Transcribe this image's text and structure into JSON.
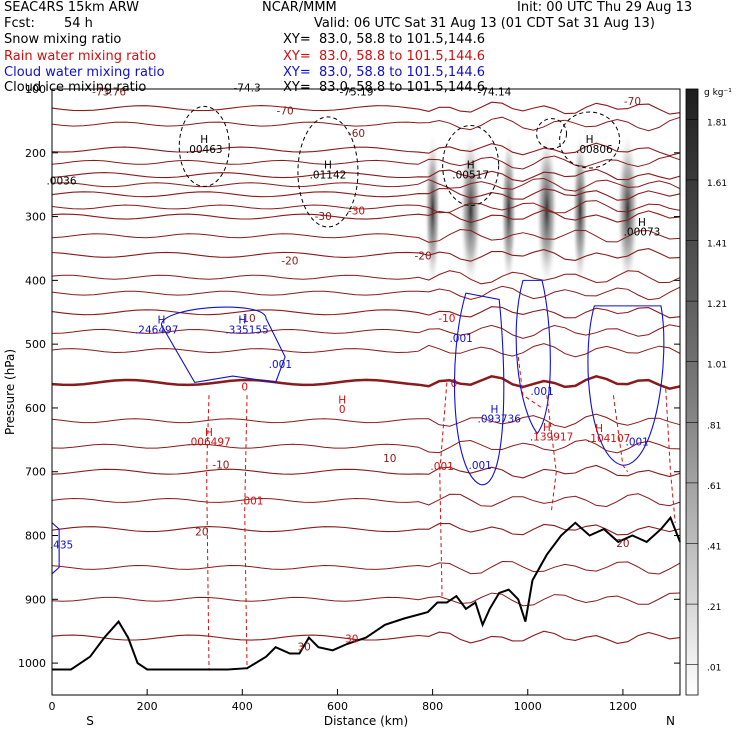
{
  "header": {
    "model": "SEAC4RS 15km ARW",
    "org": "NCAR/MMM",
    "init": "Init: 00 UTC Thu 29 Aug 13",
    "fcst_label": "Fcst:",
    "fcst_value": "54 h",
    "valid": "Valid: 06 UTC Sat 31 Aug 13 (01 CDT Sat 31 Aug 13)",
    "fields": [
      {
        "name": "Snow mixing ratio",
        "xy": "XY=  83.0, 58.8 to 101.5,144.6",
        "color": "#000000"
      },
      {
        "name": "Rain water mixing ratio",
        "xy": "XY=  83.0, 58.8 to 101.5,144.6",
        "color": "#d01010"
      },
      {
        "name": "Cloud water mixing ratio",
        "xy": "XY=  83.0, 58.8 to 101.5,144.6",
        "color": "#1010d0"
      },
      {
        "name": "Cloud ice mixing ratio",
        "xy": "XY=  83.0, 58.8 to 101.5,144.6",
        "color": "#000000"
      }
    ]
  },
  "chart_data": {
    "type": "cross-section",
    "xlabel": "Distance (km)",
    "ylabel": "Pressure (hPa)",
    "xlim": [
      0,
      1320
    ],
    "ylim": [
      1050,
      100
    ],
    "x_ticks": [
      "0",
      "200",
      "400",
      "600",
      "800",
      "1000",
      "1200"
    ],
    "y_ticks": [
      "200",
      "300",
      "400",
      "500",
      "600",
      "700",
      "800",
      "900",
      "1000"
    ],
    "y_top_tick": "100",
    "end_labels": {
      "left": "S",
      "right": "N"
    },
    "colorbar": {
      "unit": "g kg⁻¹",
      "labels": [
        "1.81",
        "1.61",
        "1.41",
        "1.21",
        "1.01",
        ".81",
        ".61",
        ".41",
        ".21",
        ".01"
      ]
    },
    "snow_columns_km": [
      800,
      880,
      960,
      1040,
      1110,
      1210
    ],
    "temperature_contours": [
      {
        "label": "-70",
        "p": 130
      },
      {
        "label": "-60",
        "p": 195
      },
      {
        "label": "-50",
        "p": 235
      },
      {
        "label": "-40",
        "p": 265
      },
      {
        "label": "-30",
        "p": 300
      },
      {
        "label": "-20",
        "p": 360
      },
      {
        "label": "-10",
        "p": 450
      },
      {
        "label": "0",
        "p": 560
      },
      {
        "label": "10",
        "p": 700
      },
      {
        "label": "20",
        "p": 790
      },
      {
        "label": "30",
        "p": 960
      }
    ],
    "annotations": [
      {
        "text": "-73.76",
        "x": 120,
        "p": 110,
        "color": "#8b1a1a"
      },
      {
        "text": "-70",
        "x": 490,
        "p": 140,
        "color": "#8b1a1a"
      },
      {
        "text": "-70",
        "x": 1220,
        "p": 125,
        "color": "#8b1a1a"
      },
      {
        "text": "-60",
        "x": 640,
        "p": 175,
        "color": "#8b1a1a"
      },
      {
        "text": "-30",
        "x": 570,
        "p": 305,
        "color": "#8b1a1a"
      },
      {
        "text": "-30",
        "x": 640,
        "p": 297,
        "color": "#d01010"
      },
      {
        "text": "-20",
        "x": 500,
        "p": 375,
        "color": "#8b1a1a"
      },
      {
        "text": "-20",
        "x": 780,
        "p": 367,
        "color": "#8b1a1a"
      },
      {
        "text": "-10",
        "x": 410,
        "p": 465,
        "color": "#8b1a1a"
      },
      {
        "text": "-10",
        "x": 830,
        "p": 465,
        "color": "#d01010"
      },
      {
        "text": "0",
        "x": 405,
        "p": 573,
        "color": "#d01010"
      },
      {
        "text": "0",
        "x": 845,
        "p": 567,
        "color": "#d01010"
      },
      {
        "text": "-10",
        "x": 355,
        "p": 695,
        "color": "#8b1a1a"
      },
      {
        "text": "10",
        "x": 710,
        "p": 685,
        "color": "#8b1a1a"
      },
      {
        "text": "20",
        "x": 315,
        "p": 800,
        "color": "#8b1a1a"
      },
      {
        "text": "20",
        "x": 1200,
        "p": 818,
        "color": "#8b1a1a"
      },
      {
        "text": "30",
        "x": 530,
        "p": 980,
        "color": "#8b1a1a"
      },
      {
        "text": "30",
        "x": 630,
        "p": 968,
        "color": "#d01010"
      },
      {
        "text": "H",
        "x": 320,
        "p": 185,
        "color": "#000000"
      },
      {
        "text": ".00463",
        "x": 320,
        "p": 200,
        "color": "#000000"
      },
      {
        "text": "H",
        "x": 580,
        "p": 225,
        "color": "#000000"
      },
      {
        "text": ".01142",
        "x": 580,
        "p": 240,
        "color": "#000000"
      },
      {
        "text": "H",
        "x": 880,
        "p": 225,
        "color": "#000000"
      },
      {
        "text": ".00517",
        "x": 880,
        "p": 240,
        "color": "#000000"
      },
      {
        "text": "H",
        "x": 1130,
        "p": 185,
        "color": "#000000"
      },
      {
        "text": ".00806",
        "x": 1140,
        "p": 200,
        "color": "#000000"
      },
      {
        "text": "H",
        "x": 1240,
        "p": 315,
        "color": "#000000"
      },
      {
        "text": ".00073",
        "x": 1240,
        "p": 330,
        "color": "#000000"
      },
      {
        "text": ".0036",
        "x": 20,
        "p": 250,
        "color": "#000000"
      },
      {
        "text": "-75.19",
        "x": 640,
        "p": 110,
        "color": "#000000"
      },
      {
        "text": "-74.14",
        "x": 930,
        "p": 110,
        "color": "#000000"
      },
      {
        "text": "-74.3",
        "x": 410,
        "p": 104,
        "color": "#000000"
      },
      {
        "text": "H",
        "x": 230,
        "p": 468,
        "color": "#1010d0"
      },
      {
        "text": ".246497",
        "x": 220,
        "p": 483,
        "color": "#1010d0"
      },
      {
        "text": "H",
        "x": 400,
        "p": 468,
        "color": "#1010d0"
      },
      {
        "text": ".335155",
        "x": 410,
        "p": 483,
        "color": "#1010d0"
      },
      {
        "text": ".001",
        "x": 480,
        "p": 537,
        "color": "#1010d0"
      },
      {
        "text": ".001",
        "x": 860,
        "p": 497,
        "color": "#1010d0"
      },
      {
        "text": ".001",
        "x": 1030,
        "p": 580,
        "color": "#1010d0"
      },
      {
        "text": "H",
        "x": 930,
        "p": 608,
        "color": "#1010d0"
      },
      {
        "text": ".093736",
        "x": 940,
        "p": 623,
        "color": "#1010d0"
      },
      {
        "text": ".001",
        "x": 900,
        "p": 696,
        "color": "#1010d0"
      },
      {
        "text": ".001",
        "x": 1230,
        "p": 659,
        "color": "#1010d0"
      },
      {
        "text": ".435",
        "x": 20,
        "p": 820,
        "color": "#1010d0"
      },
      {
        "text": "H",
        "x": 610,
        "p": 593,
        "color": "#d01010"
      },
      {
        "text": "0",
        "x": 610,
        "p": 608,
        "color": "#d01010"
      },
      {
        "text": "H",
        "x": 330,
        "p": 644,
        "color": "#d01010"
      },
      {
        "text": ".006497",
        "x": 330,
        "p": 659,
        "color": "#d01010"
      },
      {
        "text": "H",
        "x": 1040,
        "p": 636,
        "color": "#d01010"
      },
      {
        "text": ".139917",
        "x": 1050,
        "p": 651,
        "color": "#d01010"
      },
      {
        "text": "H",
        "x": 1150,
        "p": 638,
        "color": "#d01010"
      },
      {
        "text": ".104107",
        "x": 1170,
        "p": 653,
        "color": "#d01010"
      },
      {
        "text": ".001",
        "x": 820,
        "p": 697,
        "color": "#d01010"
      },
      {
        "text": ".001",
        "x": 420,
        "p": 751,
        "color": "#d01010"
      }
    ],
    "terrain": [
      [
        0,
        1010
      ],
      [
        40,
        1010
      ],
      [
        80,
        990
      ],
      [
        110,
        960
      ],
      [
        140,
        935
      ],
      [
        160,
        960
      ],
      [
        180,
        1000
      ],
      [
        200,
        1010
      ],
      [
        300,
        1010
      ],
      [
        370,
        1010
      ],
      [
        410,
        1008
      ],
      [
        450,
        990
      ],
      [
        470,
        975
      ],
      [
        500,
        985
      ],
      [
        520,
        985
      ],
      [
        540,
        960
      ],
      [
        560,
        975
      ],
      [
        590,
        980
      ],
      [
        620,
        970
      ],
      [
        660,
        960
      ],
      [
        700,
        940
      ],
      [
        740,
        930
      ],
      [
        790,
        920
      ],
      [
        810,
        905
      ],
      [
        830,
        905
      ],
      [
        850,
        895
      ],
      [
        870,
        915
      ],
      [
        890,
        905
      ],
      [
        905,
        940
      ],
      [
        920,
        915
      ],
      [
        940,
        890
      ],
      [
        960,
        885
      ],
      [
        980,
        900
      ],
      [
        995,
        935
      ],
      [
        1010,
        870
      ],
      [
        1040,
        830
      ],
      [
        1070,
        800
      ],
      [
        1100,
        780
      ],
      [
        1130,
        800
      ],
      [
        1160,
        790
      ],
      [
        1190,
        810
      ],
      [
        1220,
        800
      ],
      [
        1250,
        810
      ],
      [
        1280,
        790
      ],
      [
        1300,
        772
      ],
      [
        1320,
        810
      ]
    ]
  }
}
